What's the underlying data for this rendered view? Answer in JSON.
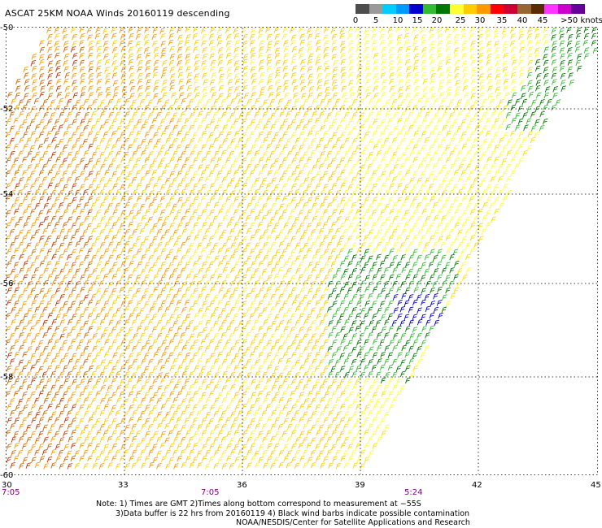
{
  "title": "ASCAT 25KM NOAA Winds 20160119 descending",
  "legend": {
    "labels": [
      "0",
      "5",
      "10",
      "15",
      "20",
      "25",
      "30",
      "35",
      "40",
      "45",
      ">50 knots"
    ],
    "colors": [
      "#4d4d4d",
      "#9a9a9a",
      "#00ccff",
      "#0099ff",
      "#0000cc",
      "#33bb33",
      "#007700",
      "#ffff33",
      "#ffcc00",
      "#ff9900",
      "#ff0000",
      "#cc0033",
      "#996633",
      "#5a2a00",
      "#ff33ff",
      "#cc00cc",
      "#660099"
    ]
  },
  "map": {
    "lat_labels": [
      "-50",
      "-52",
      "-54",
      "-56",
      "-58",
      "-60"
    ],
    "lon_labels": [
      "30",
      "33",
      "36",
      "39",
      "42",
      "45"
    ],
    "time_labels": [
      "7:05",
      "7:05",
      "5:24"
    ]
  },
  "notes": {
    "line1": "Note: 1) Times are GMT 2)Times along bottom correspond to measurement at −55S",
    "line2": "3)Data buffer is 22 hrs from 20160119 4) Black wind barbs indicate possible contamination",
    "line3": "NOAA/NESDIS/Center for Satellite Applications and Research"
  }
}
